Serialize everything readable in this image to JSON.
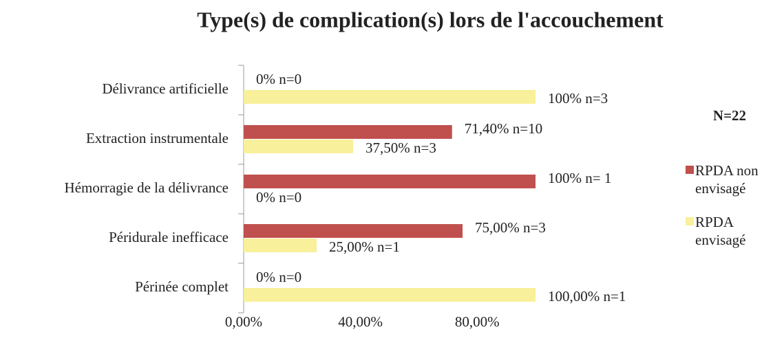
{
  "chart_data": {
    "type": "barh",
    "title": "Type(s) de complication(s) lors de l'accouchement",
    "categories": [
      "Délivrance artificielle",
      "Extraction instrumentale",
      "Hémorragie de la délivrance",
      "Péridurale inefficace",
      "Périnée complet"
    ],
    "series": [
      {
        "name": "RPDA non envisagé",
        "color": "#c0504d",
        "values": [
          0,
          71.4,
          100,
          75,
          0
        ],
        "value_labels": [
          "0% n=0",
          "71,40% n=10",
          "100% n= 1",
          "75,00% n=3",
          "0% n=0"
        ]
      },
      {
        "name": "RPDA envisagé",
        "color": "#f8f09a",
        "values": [
          100,
          37.5,
          0,
          25,
          100
        ],
        "value_labels": [
          "100% n=3",
          "37,50% n=3",
          "0% n=0",
          "25,00% n=1",
          "100,00% n=1"
        ]
      }
    ],
    "xlim": [
      0,
      100
    ],
    "xticks": [
      {
        "value": 0,
        "label": "0,00%"
      },
      {
        "value": 40,
        "label": "40,00%"
      },
      {
        "value": 80,
        "label": "80,00%"
      }
    ],
    "legend_title": "N=22",
    "legend": "right"
  }
}
